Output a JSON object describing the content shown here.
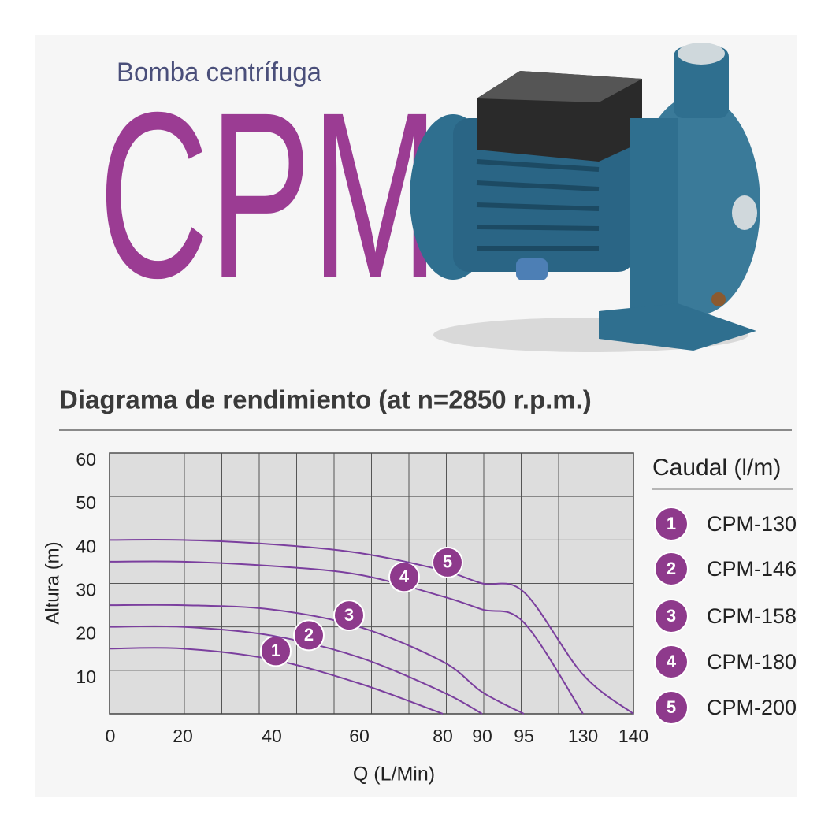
{
  "header": {
    "subtitle": "Bomba centrífuga",
    "product": "CPM"
  },
  "chart_data": {
    "type": "line",
    "title": "Diagrama de rendimiento (at n=2850 r.p.m.)",
    "x_label": "Q (L/Min)",
    "y_label": "Altura (m)",
    "ylim": [
      0,
      60
    ],
    "yticks": [
      10,
      20,
      30,
      40,
      50,
      60
    ],
    "xlim": [
      0,
      140
    ],
    "xticks": [
      0,
      20,
      40,
      60,
      80,
      90,
      95,
      130,
      140
    ],
    "grid": true,
    "legend_title": "Caudal (l/m)",
    "series": [
      {
        "name": "CPM-130",
        "marker": "1",
        "color": "#7b3f9e",
        "x": [
          0,
          20,
          40,
          60,
          80
        ],
        "values": [
          15,
          15,
          12.5,
          7,
          0
        ]
      },
      {
        "name": "CPM-146",
        "marker": "2",
        "color": "#7b3f9e",
        "x": [
          0,
          20,
          40,
          60,
          80,
          90
        ],
        "values": [
          20,
          20,
          18,
          13,
          5,
          0
        ]
      },
      {
        "name": "CPM-158",
        "marker": "3",
        "color": "#7b3f9e",
        "x": [
          0,
          20,
          40,
          60,
          80,
          90,
          95
        ],
        "values": [
          25,
          25,
          24,
          20,
          12,
          5,
          0
        ]
      },
      {
        "name": "CPM-180",
        "marker": "4",
        "color": "#7b3f9e",
        "x": [
          0,
          20,
          40,
          60,
          80,
          90,
          95,
          130
        ],
        "values": [
          35,
          35,
          34,
          32,
          27,
          24,
          21,
          0
        ]
      },
      {
        "name": "CPM-200",
        "marker": "5",
        "color": "#7b3f9e",
        "x": [
          0,
          20,
          40,
          60,
          80,
          90,
          95,
          130,
          140
        ],
        "values": [
          40,
          40,
          39,
          37,
          33,
          30,
          28,
          9,
          0
        ]
      }
    ]
  }
}
